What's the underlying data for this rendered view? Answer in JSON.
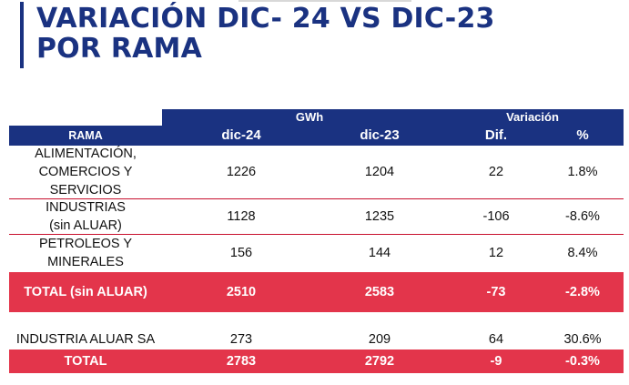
{
  "title": {
    "line1": "VARIACIÓN DIC- 24 VS DIC-23",
    "line2": "POR RAMA"
  },
  "colors": {
    "navy": "#1a3281",
    "red": "#e3354b"
  },
  "header": {
    "gwh": "GWh",
    "variacion": "Variación",
    "rama": "RAMA",
    "dic24": "dic-24",
    "dic23": "dic-23",
    "dif": "Dif.",
    "pct": "%"
  },
  "rows": [
    {
      "rama": "ALIMENTACIÓN,\nCOMERCIOS Y\nSERVICIOS",
      "dic24": "1226",
      "dic23": "1204",
      "dif": "22",
      "pct": "1.8%"
    },
    {
      "rama": "INDUSTRIAS\n(sin ALUAR)",
      "dic24": "1128",
      "dic23": "1235",
      "dif": "-106",
      "pct": "-8.6%"
    },
    {
      "rama": "PETROLEOS Y\nMINERALES",
      "dic24": "156",
      "dic23": "144",
      "dif": "12",
      "pct": "8.4%"
    }
  ],
  "total_sin_aluar": {
    "rama": "TOTAL (sin ALUAR)",
    "dic24": "2510",
    "dic23": "2583",
    "dif": "-73",
    "pct": "-2.8%"
  },
  "aluar": {
    "rama": "INDUSTRIA ALUAR SA",
    "dic24": "273",
    "dic23": "209",
    "dif": "64",
    "pct": "30.6%"
  },
  "total": {
    "rama": "TOTAL",
    "dic24": "2783",
    "dic23": "2792",
    "dif": "-9",
    "pct": "-0.3%"
  }
}
